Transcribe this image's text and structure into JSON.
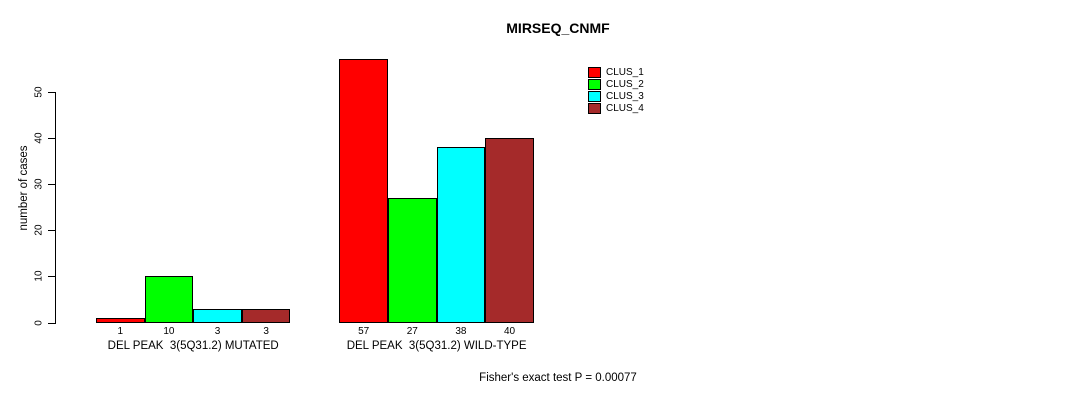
{
  "chart_data": {
    "type": "bar",
    "title": "MIRSEQ_CNMF",
    "xlabel": "",
    "ylabel": "number of cases",
    "ylim": [
      0,
      58
    ],
    "yticks": [
      0,
      10,
      20,
      30,
      40,
      50
    ],
    "grid": false,
    "legend_position": "top-right",
    "background": "#FFFFFF",
    "bar_border_color": "#000000",
    "categories": [
      "DEL PEAK  3(5Q31.2) MUTATED",
      "DEL PEAK  3(5Q31.2) WILD-TYPE"
    ],
    "series": [
      {
        "name": "CLUS_1",
        "color": "#FF0000",
        "values": [
          1,
          57
        ]
      },
      {
        "name": "CLUS_2",
        "color": "#00FF00",
        "values": [
          10,
          27
        ]
      },
      {
        "name": "CLUS_3",
        "color": "#00FFFF",
        "values": [
          3,
          38
        ]
      },
      {
        "name": "CLUS_4",
        "color": "#A52A2A",
        "values": [
          3,
          40
        ]
      }
    ],
    "show_value_labels": true,
    "annotation": "Fisher's exact test P = 0.00077"
  }
}
